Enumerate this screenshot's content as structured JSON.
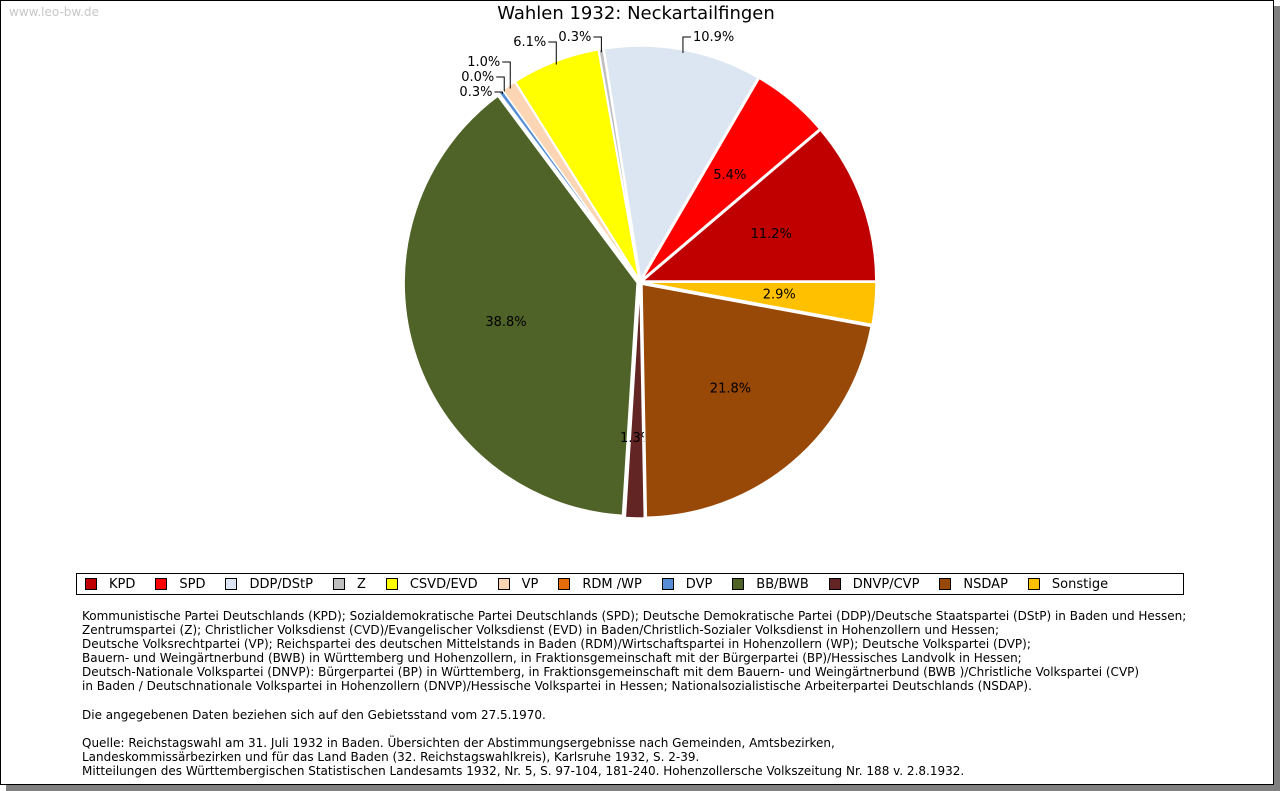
{
  "watermark": "www.leo-bw.de",
  "chart_data": {
    "type": "pie",
    "title": "Wahlen 1932: Neckartailfingen",
    "categories": [
      "KPD",
      "SPD",
      "DDP/DStP",
      "Z",
      "CSVD/EVD",
      "VP",
      "RDM /WP",
      "DVP",
      "BB/BWB",
      "DNVP/CVP",
      "NSDAP",
      "Sonstige"
    ],
    "values": [
      11.2,
      5.4,
      10.9,
      0.3,
      6.1,
      1.0,
      0.0,
      0.3,
      38.8,
      1.3,
      21.8,
      2.9
    ],
    "labels": [
      "11.2%",
      "5.4%",
      "10.9%",
      "0.3%",
      "6.1%",
      "1.0%",
      "0.0%",
      "0.3%",
      "38.8%",
      "1.3%",
      "21.8%",
      "2.9%"
    ],
    "colors": [
      "#c00000",
      "#ff0000",
      "#dce6f2",
      "#bfbfbf",
      "#ffff00",
      "#fcd5b5",
      "#e46c0a",
      "#558ed5",
      "#4f6228",
      "#632523",
      "#984807",
      "#ffc000"
    ],
    "legend_placement": "bottom"
  },
  "notes": {
    "lines": [
      "Kommunistische Partei Deutschlands (KPD); Sozialdemokratische Partei Deutschlands (SPD); Deutsche Demokratische Partei (DDP)/Deutsche Staatspartei (DStP) in Baden und Hessen;",
      "Zentrumspartei (Z); Christlicher Volksdienst (CVD)/Evangelischer Volksdienst (EVD) in Baden/Christlich-Sozialer Volksdienst in Hohenzollern und Hessen;",
      "Deutsche Volksrechtpartei (VP); Reichspartei des deutschen Mittelstands in Baden (RDM)/Wirtschaftspartei in Hohenzollern (WP); Deutsche Volkspartei (DVP);",
      "Bauern- und Weingärtnerbund (BWB) in Württemberg und Hohenzollern, in Fraktionsgemeinschaft mit der Bürgerpartei (BP)/Hessisches Landvolk in Hessen;",
      "Deutsch-Nationale Volkspartei (DNVP): Bürgerpartei (BP) in Württemberg, in Fraktionsgemeinschaft mit dem Bauern- und Weingärtnerbund (BWB )/Christliche Volkspartei (CVP)",
      "in Baden / Deutschnationale Volkspartei in Hohenzollern (DNVP)/Hessische Volkspartei in Hessen; Nationalsozialistische Arbeiterpartei Deutschlands (NSDAP)."
    ],
    "gebiet": "Die angegebenen Daten beziehen sich auf den Gebietsstand vom 27.5.1970.",
    "source": [
      "Quelle: Reichstagswahl am 31. Juli 1932 in Baden. Übersichten der Abstimmungsergebnisse nach Gemeinden, Amtsbezirken,",
      "Landeskommissärbezirken und für das Land Baden (32. Reichstagswahlkreis), Karlsruhe 1932, S. 2-39.",
      "Mitteilungen des Württembergischen Statistischen Landesamts 1932, Nr. 5, S. 97-104, 181-240. Hohenzollersche Volkszeitung Nr. 188 v. 2.8.1932."
    ]
  }
}
